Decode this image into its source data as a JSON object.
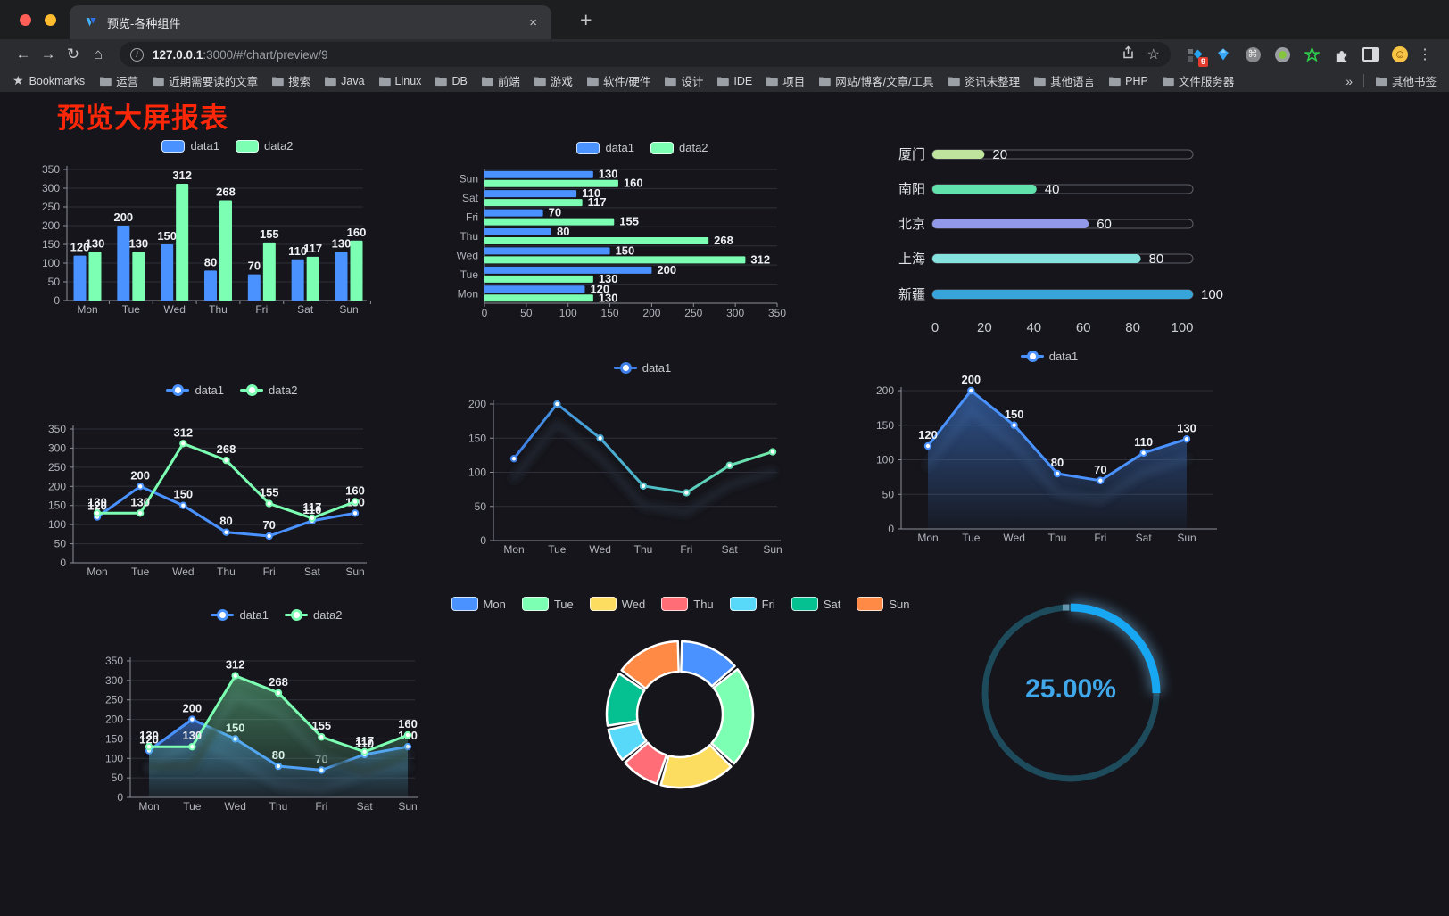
{
  "browser": {
    "tab_title": "预览-各种组件",
    "tab_close": "×",
    "new_tab": "+",
    "url_host": "127.0.0.1",
    "url_rest": ":3000/#/chart/preview/9",
    "bookmarks_root": "Bookmarks",
    "bookmarks": [
      "运营",
      "近期需要读的文章",
      "搜索",
      "Java",
      "Linux",
      "DB",
      "前端",
      "游戏",
      "软件/硬件",
      "设计",
      "IDE",
      "项目",
      "网站/博客/文章/工具",
      "资讯未整理",
      "其他语言",
      "PHP",
      "文件服务器"
    ],
    "overflow_chevron": "»",
    "other_bookmarks": "其他书签",
    "extension_badge": "9",
    "menu_dots": "⋮"
  },
  "page": {
    "title": "预览大屏报表",
    "title_color": "#fb2708",
    "background": "#15151b"
  },
  "chart_data": [
    {
      "id": "bar-vertical",
      "type": "bar",
      "categories": [
        "Mon",
        "Tue",
        "Wed",
        "Thu",
        "Fri",
        "Sat",
        "Sun"
      ],
      "series": [
        {
          "name": "data1",
          "color": "#4992ff",
          "values": [
            120,
            200,
            150,
            80,
            70,
            110,
            130
          ]
        },
        {
          "name": "data2",
          "color": "#7cffb2",
          "values": [
            130,
            130,
            312,
            268,
            155,
            117,
            160
          ]
        }
      ],
      "ylim": [
        0,
        350
      ],
      "yticks": [
        0,
        50,
        100,
        150,
        200,
        250,
        300,
        350
      ],
      "legend_position": "top",
      "value_labels": true
    },
    {
      "id": "bar-horizontal",
      "type": "bar",
      "orientation": "horizontal",
      "categories": [
        "Mon",
        "Tue",
        "Wed",
        "Thu",
        "Fri",
        "Sat",
        "Sun"
      ],
      "display_order_top_to_bottom": [
        "Sun",
        "Sat",
        "Fri",
        "Thu",
        "Wed",
        "Tue",
        "Mon"
      ],
      "series": [
        {
          "name": "data1",
          "color": "#4992ff",
          "values": [
            120,
            200,
            150,
            80,
            70,
            110,
            130
          ]
        },
        {
          "name": "data2",
          "color": "#7cffb2",
          "values": [
            130,
            130,
            312,
            268,
            155,
            117,
            160
          ]
        }
      ],
      "xlim": [
        0,
        350
      ],
      "xticks": [
        0,
        50,
        100,
        150,
        200,
        250,
        300,
        350
      ],
      "legend_position": "top",
      "value_labels": true
    },
    {
      "id": "progress-bars",
      "type": "bar",
      "orientation": "progress",
      "items": [
        {
          "label": "厦门",
          "value": 20,
          "color": "#bfe49e"
        },
        {
          "label": "南阳",
          "value": 40,
          "color": "#61e1ac"
        },
        {
          "label": "北京",
          "value": 60,
          "color": "#9199e8"
        },
        {
          "label": "上海",
          "value": 80,
          "color": "#85e2df"
        },
        {
          "label": "新疆",
          "value": 100,
          "color": "#37a5da"
        }
      ],
      "xlim": [
        0,
        100
      ],
      "xticks": [
        0,
        20,
        40,
        60,
        80,
        100
      ]
    },
    {
      "id": "line-two-series",
      "type": "line",
      "categories": [
        "Mon",
        "Tue",
        "Wed",
        "Thu",
        "Fri",
        "Sat",
        "Sun"
      ],
      "series": [
        {
          "name": "data1",
          "color": "#4992ff",
          "values": [
            120,
            200,
            150,
            80,
            70,
            110,
            130
          ]
        },
        {
          "name": "data2",
          "color": "#7cffb2",
          "values": [
            130,
            130,
            312,
            268,
            155,
            117,
            160
          ]
        }
      ],
      "ylim": [
        0,
        350
      ],
      "yticks": [
        0,
        50,
        100,
        150,
        200,
        250,
        300,
        350
      ],
      "legend_position": "top",
      "value_labels": true
    },
    {
      "id": "line-gradient",
      "type": "line",
      "categories": [
        "Mon",
        "Tue",
        "Wed",
        "Thu",
        "Fri",
        "Sat",
        "Sun"
      ],
      "series": [
        {
          "name": "data1",
          "color": "#4a90e2",
          "color_gradient": [
            "#3f7fe8",
            "#4fc0c6",
            "#71e9a8"
          ],
          "values": [
            120,
            200,
            150,
            80,
            70,
            110,
            130
          ]
        }
      ],
      "ylim": [
        0,
        200
      ],
      "yticks": [
        0,
        50,
        100,
        150,
        200
      ],
      "legend_position": "top",
      "shadow": true,
      "value_labels": false
    },
    {
      "id": "line-area",
      "type": "area",
      "categories": [
        "Mon",
        "Tue",
        "Wed",
        "Thu",
        "Fri",
        "Sat",
        "Sun"
      ],
      "series": [
        {
          "name": "data1",
          "color": "#4992ff",
          "area": true,
          "values": [
            120,
            200,
            150,
            80,
            70,
            110,
            130
          ]
        }
      ],
      "ylim": [
        0,
        200
      ],
      "yticks": [
        0,
        50,
        100,
        150,
        200
      ],
      "legend_position": "top",
      "shadow": true,
      "value_labels": true
    },
    {
      "id": "area-two-series",
      "type": "area",
      "categories": [
        "Mon",
        "Tue",
        "Wed",
        "Thu",
        "Fri",
        "Sat",
        "Sun"
      ],
      "series": [
        {
          "name": "data1",
          "color": "#4992ff",
          "area": true,
          "values": [
            120,
            200,
            150,
            80,
            70,
            110,
            130
          ]
        },
        {
          "name": "data2",
          "color": "#7cffb2",
          "area": true,
          "values": [
            130,
            130,
            312,
            268,
            155,
            117,
            160
          ]
        }
      ],
      "ylim": [
        0,
        350
      ],
      "yticks": [
        0,
        50,
        100,
        150,
        200,
        250,
        300,
        350
      ],
      "legend_position": "top",
      "shadow": true,
      "value_labels": true
    },
    {
      "id": "donut",
      "type": "pie",
      "inner_radius_ratio": 0.59,
      "legend_position": "top",
      "items": [
        {
          "label": "Mon",
          "value": 120,
          "color": "#4992ff"
        },
        {
          "label": "Tue",
          "value": 200,
          "color": "#7cffb2"
        },
        {
          "label": "Wed",
          "value": 150,
          "color": "#fddd60"
        },
        {
          "label": "Thu",
          "value": 80,
          "color": "#ff6e76"
        },
        {
          "label": "Fri",
          "value": 70,
          "color": "#58d9f9"
        },
        {
          "label": "Sat",
          "value": 110,
          "color": "#05c091"
        },
        {
          "label": "Sun",
          "value": 130,
          "color": "#ff8a45"
        }
      ]
    },
    {
      "id": "gauge",
      "type": "gauge",
      "value": 25,
      "max": 100,
      "display": "25.00%",
      "track_color": "#1d4b5c",
      "arc_color": "#18a7f2",
      "text_color": "#3fa7ea"
    }
  ]
}
